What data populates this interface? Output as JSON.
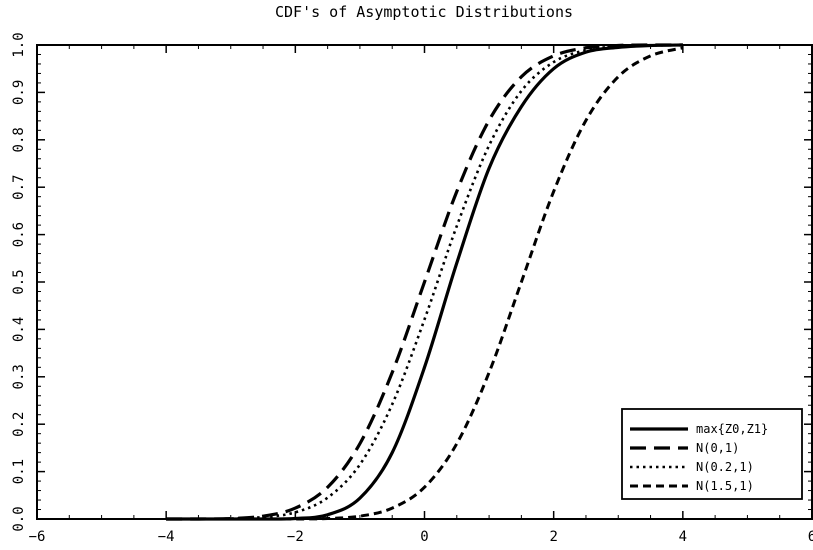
{
  "chart_data": {
    "type": "line",
    "title": "CDF's of Asymptotic Distributions",
    "xlabel": "",
    "ylabel": "",
    "xlim": [
      -6,
      6
    ],
    "ylim": [
      0,
      1
    ],
    "x_ticks": [
      -6,
      -4,
      -2,
      0,
      2,
      4,
      6
    ],
    "x_tick_labels": [
      "−6",
      "−4",
      "−2",
      "0",
      "2",
      "4",
      "6"
    ],
    "y_ticks": [
      0,
      0.1,
      0.2,
      0.3,
      0.4,
      0.5,
      0.6,
      0.7,
      0.8,
      0.9,
      1.0
    ],
    "y_tick_labels": [
      "0.0",
      "0.1",
      "0.2",
      "0.3",
      "0.4",
      "0.5",
      "0.6",
      "0.7",
      "0.8",
      "0.9",
      "1.0"
    ],
    "grid": false,
    "legend_position": "bottom-right",
    "x": [
      -4,
      -3.5,
      -3,
      -2.5,
      -2,
      -1.5,
      -1,
      -0.5,
      0,
      0.5,
      1,
      1.5,
      2,
      2.5,
      3,
      3.5,
      4
    ],
    "series": [
      {
        "name": "max{Z0,Z1}",
        "style": "solid",
        "values": [
          0.0,
          0.0,
          0.0,
          0.0,
          0.001,
          0.009,
          0.044,
          0.14,
          0.32,
          0.54,
          0.74,
          0.87,
          0.95,
          0.985,
          0.995,
          0.999,
          1.0
        ]
      },
      {
        "name": "N(0,1)",
        "style": "long-dash",
        "values": [
          0.0,
          0.0,
          0.001,
          0.006,
          0.023,
          0.067,
          0.159,
          0.309,
          0.5,
          0.691,
          0.841,
          0.933,
          0.977,
          0.994,
          0.999,
          1.0,
          1.0
        ]
      },
      {
        "name": "N(0.2,1)",
        "style": "dotted",
        "values": [
          0.0,
          0.0,
          0.001,
          0.004,
          0.014,
          0.045,
          0.115,
          0.242,
          0.421,
          0.618,
          0.788,
          0.903,
          0.964,
          0.989,
          0.997,
          0.999,
          1.0
        ]
      },
      {
        "name": "N(1.5,1)",
        "style": "short-dash",
        "values": [
          0.0,
          0.0,
          0.0,
          0.0,
          0.0,
          0.001,
          0.006,
          0.023,
          0.067,
          0.159,
          0.309,
          0.5,
          0.691,
          0.841,
          0.933,
          0.977,
          0.994
        ]
      }
    ]
  }
}
